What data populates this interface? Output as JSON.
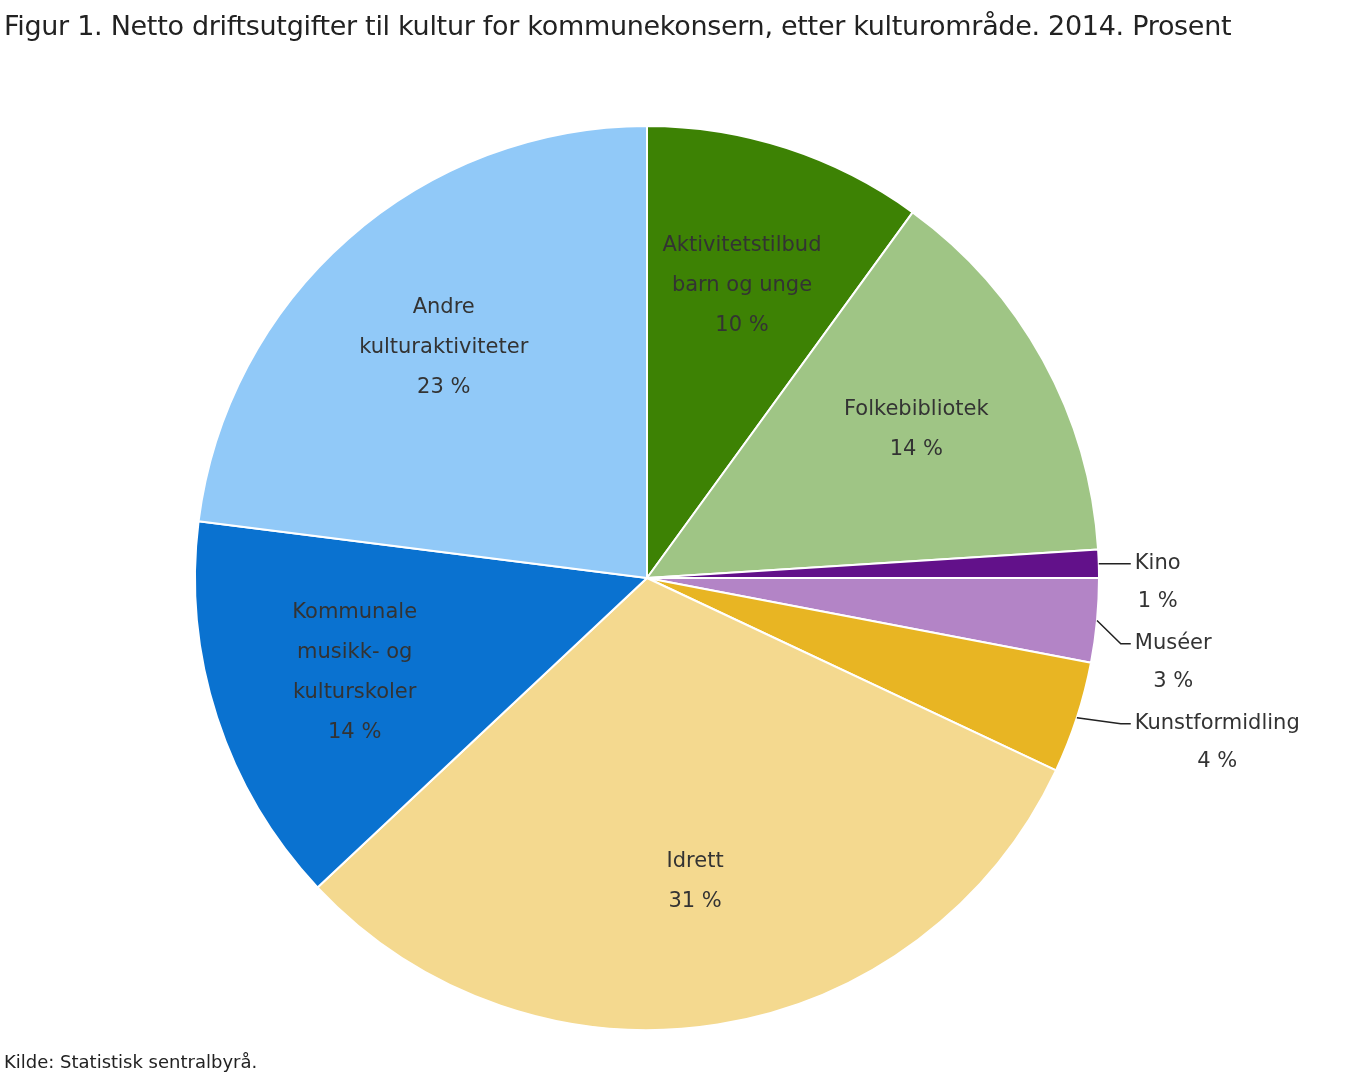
{
  "chart_data": {
    "type": "pie",
    "title": "Figur 1. Netto driftsutgifter til kultur for kommunekonsern, etter kulturområde. 2014. Prosent",
    "source": "Kilde: Statistisk sentralbyrå.",
    "categories": [
      "Aktivitetstilbud barn og unge",
      "Folkebibliotek",
      "Kino",
      "Muséer",
      "Kunstformidling",
      "Idrett",
      "Kommunale musikk- og kulturskoler",
      "Andre kulturaktiviteter"
    ],
    "values": [
      10,
      14,
      1,
      3,
      4,
      31,
      14,
      23
    ],
    "value_labels": [
      "10 %",
      "14 %",
      "1 %",
      "3 %",
      "4 %",
      "31 %",
      "14 %",
      "23 %"
    ],
    "colors": [
      "#3d8204",
      "#9fc585",
      "#62118a",
      "#b384c6",
      "#e8b523",
      "#f4d98f",
      "#0a72d0",
      "#91c9f8"
    ],
    "data_labels": true
  }
}
